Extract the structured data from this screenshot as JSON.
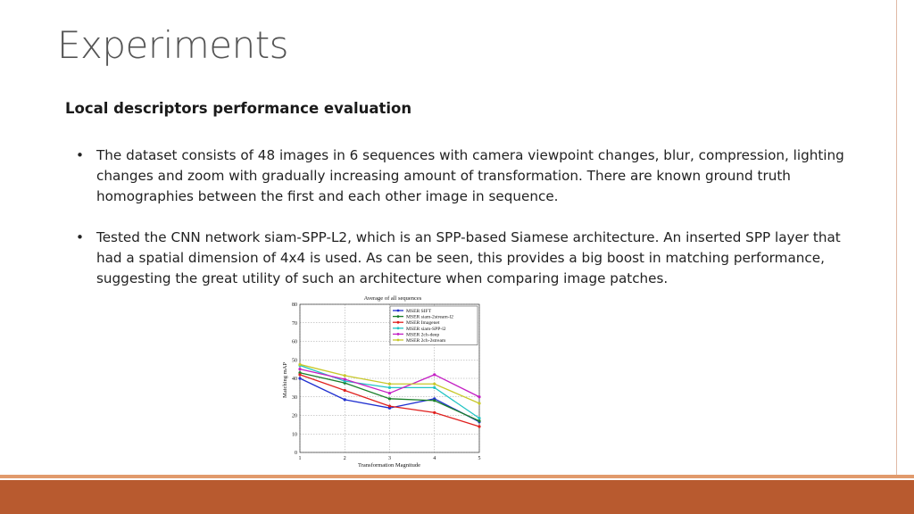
{
  "slide": {
    "title": "Experiments",
    "subtitle": "Local descriptors performance evaluation",
    "bullet_symbol": "•",
    "bullets": [
      "The dataset consists of 48 images in 6 sequences with camera viewpoint changes, blur, compression, lighting changes and zoom with gradually increasing amount of transformation. There are known ground truth homographies between the first and each other image in sequence.",
      "Tested the CNN network siam-SPP-L2, which is an SPP-based Siamese architecture. An inserted SPP layer that had a spatial dimension of 4x4 is used. As can be seen, this provides a big boost in matching performance, suggesting the great utility of such an architecture when comparing image patches."
    ]
  },
  "colors": {
    "accent": "#b85a2f",
    "accent_light": "#e19a6c"
  },
  "chart_data": {
    "type": "line",
    "title": "Average of all sequences",
    "xlabel": "Transformation Magnitude",
    "ylabel": "Matching mAP",
    "x": [
      1,
      2,
      3,
      4,
      5
    ],
    "xlim": [
      1,
      5
    ],
    "ylim": [
      0,
      80
    ],
    "xticks": [
      1,
      2,
      3,
      4,
      5
    ],
    "yticks": [
      0,
      10,
      20,
      30,
      40,
      50,
      60,
      70,
      80
    ],
    "grid": true,
    "legend_position": "top-right",
    "series": [
      {
        "name": "MSER SIFT",
        "color": "#1f2fd0",
        "values": [
          40,
          28.5,
          24,
          29,
          16.5
        ]
      },
      {
        "name": "MSER siam-2stream-l2",
        "color": "#1a7f2a",
        "values": [
          43,
          37.5,
          29,
          28,
          17
        ]
      },
      {
        "name": "MSER Imagenet",
        "color": "#e0201e",
        "values": [
          42,
          33.5,
          25,
          21.5,
          14
        ]
      },
      {
        "name": "MSER siam-SPP-l2",
        "color": "#22c4c4",
        "values": [
          47,
          38.5,
          35,
          35,
          18.5
        ]
      },
      {
        "name": "MSER 2ch-deep",
        "color": "#c41fc4",
        "values": [
          45,
          39.5,
          32,
          42,
          30
        ]
      },
      {
        "name": "MSER 2ch-2stream",
        "color": "#c8c82a",
        "values": [
          47.5,
          41.5,
          37,
          37,
          26.5
        ]
      }
    ]
  }
}
